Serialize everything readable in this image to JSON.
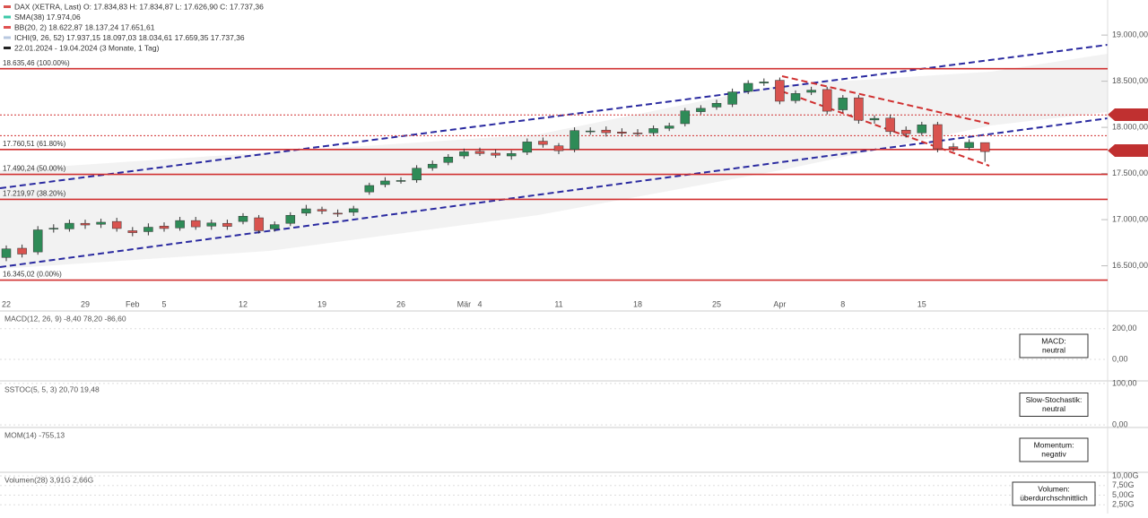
{
  "header": {
    "legend": [
      {
        "text": "DAX (XETRA, Last)  O: 17.834,83  H: 17.834,87  L: 17.626,90  C: 17.737,36",
        "color": "#d9534f"
      },
      {
        "text": "SMA(38)  17.974,06",
        "color": "#3cc8a8"
      },
      {
        "text": "BB(20, 2)  18.622,87  18.137,24  17.651,61",
        "color": "#e05050"
      },
      {
        "text": "ICHI(9, 26, 52)  17.937,15  18.097,03  18.034,61  17.659,35  17.737,36",
        "color": "#b8c8e0"
      },
      {
        "text": "22.01.2024 - 19.04.2024 (3 Monate, 1 Tag)",
        "color": "#222222"
      }
    ]
  },
  "chart_data": {
    "type": "candlestick",
    "categories": [
      "22",
      null,
      null,
      null,
      null,
      "29",
      null,
      null,
      "Feb",
      null,
      "5",
      null,
      null,
      null,
      null,
      "12",
      null,
      null,
      null,
      null,
      "19",
      null,
      null,
      null,
      null,
      "26",
      null,
      null,
      null,
      "Mär",
      "4",
      null,
      null,
      null,
      null,
      "11",
      null,
      null,
      null,
      null,
      "18",
      null,
      null,
      null,
      null,
      "25",
      null,
      null,
      null,
      "Apr",
      null,
      null,
      null,
      "8",
      null,
      null,
      null,
      null,
      "15",
      null,
      null,
      null,
      null
    ],
    "open": [
      16590,
      16690,
      16650,
      16900,
      16900,
      16960,
      16950,
      16980,
      16880,
      16870,
      16930,
      16910,
      16990,
      16930,
      16960,
      16980,
      17020,
      16900,
      16960,
      17070,
      17110,
      17070,
      17080,
      17300,
      17380,
      17420,
      17430,
      17560,
      17620,
      17690,
      17740,
      17720,
      17690,
      17730,
      17850,
      17800,
      17760,
      17960,
      17970,
      17950,
      17940,
      17940,
      17990,
      18040,
      18170,
      18220,
      18250,
      18390,
      18480,
      18510,
      18290,
      18380,
      18410,
      18190,
      18320,
      18080,
      18100,
      17970,
      17940,
      18030,
      17790,
      17780,
      17834.83
    ],
    "high": [
      16720,
      16730,
      16930,
      16950,
      17000,
      17000,
      17010,
      17020,
      16920,
      16960,
      16970,
      17030,
      17030,
      17000,
      17000,
      17070,
      17050,
      16980,
      17080,
      17160,
      17140,
      17110,
      17150,
      17400,
      17460,
      17460,
      17590,
      17640,
      17710,
      17770,
      17780,
      17760,
      17750,
      17880,
      17890,
      17830,
      18000,
      18000,
      18010,
      17990,
      17980,
      18020,
      18050,
      18210,
      18240,
      18300,
      18420,
      18510,
      18530,
      18540,
      18400,
      18440,
      18440,
      18350,
      18350,
      18130,
      18140,
      18010,
      18060,
      18060,
      17830,
      17870,
      17834.87
    ],
    "low": [
      16550,
      16590,
      16620,
      16860,
      16870,
      16900,
      16910,
      16870,
      16820,
      16830,
      16870,
      16880,
      16890,
      16890,
      16890,
      16950,
      16850,
      16870,
      16930,
      17040,
      17060,
      17030,
      17040,
      17270,
      17350,
      17390,
      17400,
      17530,
      17590,
      17660,
      17690,
      17670,
      17650,
      17700,
      17780,
      17710,
      17730,
      17920,
      17900,
      17900,
      17900,
      17910,
      17960,
      18010,
      18140,
      18190,
      18220,
      18360,
      18450,
      18250,
      18260,
      18350,
      18140,
      18160,
      18040,
      18040,
      17920,
      17890,
      17910,
      17730,
      17740,
      17750,
      17626.9
    ],
    "close": [
      16683,
      16627,
      16889,
      16907,
      16961,
      16942,
      16972,
      16904,
      16859,
      16918,
      16904,
      16990,
      16922,
      16964,
      16927,
      17037,
      16880,
      16946,
      17047,
      17117,
      17093,
      17068,
      17118,
      17370,
      17419,
      17424,
      17557,
      17601,
      17678,
      17735,
      17716,
      17698,
      17716,
      17842,
      17815,
      17747,
      17965,
      17961,
      17942,
      17936,
      17933,
      17987,
      18015,
      18179,
      18206,
      18261,
      18384,
      18477,
      18492,
      18283,
      18367,
      18403,
      18175,
      18318,
      18077,
      18097,
      17954,
      17930,
      18027,
      17767,
      17770,
      17837,
      17737.36
    ],
    "up_color": "#2e8b57",
    "down_color": "#d9534f",
    "ylim": [
      16020,
      19380
    ],
    "yticks": [
      {
        "value": 19000,
        "label": "19.000,00"
      },
      {
        "value": 18500,
        "label": "18.500,00"
      },
      {
        "value": 18000,
        "label": "18.000,00"
      },
      {
        "value": 17500,
        "label": "17.500,00"
      },
      {
        "value": 17000,
        "label": "17.000,00"
      },
      {
        "value": 16500,
        "label": "16.500,00"
      }
    ],
    "levels": [
      18635.46,
      18134,
      17910,
      17760.51,
      17490.24,
      17219.97,
      16345.02
    ],
    "level_labels": [
      "18.635,46 (100.00%)",
      null,
      null,
      "17.760,51 (61.80%)",
      "17.490,24 (50.00%)",
      "17.219,97 (38.20%)",
      "16.345,02 (0.00%)"
    ],
    "level_color": "#d03030"
  },
  "panels": [
    {
      "legend": "MACD(12, 26, 9)  -8,40  78,20  -86,60",
      "ylim": [
        -135,
        310
      ],
      "yticks": [
        {
          "value": 200,
          "label": "200,00"
        },
        {
          "value": 0,
          "label": "0,00"
        }
      ],
      "badge": [
        "MACD:",
        "neutral"
      ]
    },
    {
      "legend": "SSTOC(5, 5, 3)  20,70  19,48",
      "ylim": [
        -4,
        102
      ],
      "yticks": [
        {
          "value": 100,
          "label": "100,00"
        },
        {
          "value": 0,
          "label": "0,00"
        }
      ],
      "badge": [
        "Slow-Stochastik:",
        "neutral"
      ]
    },
    {
      "legend": "MOM(14)  -755,13",
      "badge": [
        "Momentum:",
        "negativ"
      ]
    },
    {
      "legend": "Volumen(28)  3,91G  2,66G",
      "ylim": [
        0,
        10.7
      ],
      "yticks": [
        {
          "value": 10,
          "label": "10,00G"
        },
        {
          "value": 7.5,
          "label": "7,50G"
        },
        {
          "value": 5,
          "label": "5,00G"
        },
        {
          "value": 2.5,
          "label": "2,50G"
        }
      ],
      "badge": [
        "Volumen:",
        "überdurchschnittlich"
      ]
    }
  ]
}
